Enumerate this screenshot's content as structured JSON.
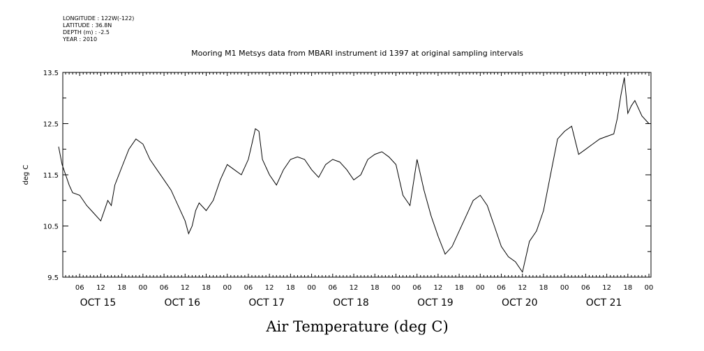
{
  "metadata": {
    "longitude": "LONGITUDE : 122W(-122)",
    "latitude": "LATITUDE : 36.8N",
    "depth": "DEPTH (m) : -2.5",
    "year": "YEAR : 2010"
  },
  "chart_data": {
    "type": "line",
    "title": "Mooring M1 Metsys data from MBARI instrument id 1397 at original sampling intervals",
    "xlabel": "Air Temperature (deg C)",
    "ylabel": "deg C",
    "ylim": [
      9.5,
      13.5
    ],
    "yticks": [
      "9.5",
      "10.5",
      "11.5",
      "12.5",
      "13.5"
    ],
    "xlim_hours": [
      0,
      168
    ],
    "hour_ticks": [
      "06",
      "12",
      "18",
      "00",
      "06",
      "12",
      "18",
      "00",
      "06",
      "12",
      "18",
      "00",
      "06",
      "12",
      "18",
      "00",
      "06",
      "12",
      "18",
      "00",
      "06",
      "12",
      "18",
      "00",
      "06",
      "12",
      "18",
      "00"
    ],
    "day_labels": [
      "OCT 15",
      "OCT 16",
      "OCT 17",
      "OCT 18",
      "OCT 19",
      "OCT 20",
      "OCT 21"
    ],
    "series": [
      {
        "x_hours": [
          0,
          1,
          2,
          3,
          4,
          6,
          8,
          10,
          12,
          13,
          14,
          15,
          16,
          18,
          20,
          22,
          24,
          26,
          28,
          30,
          32,
          34,
          36,
          37,
          38,
          39,
          40,
          42,
          44,
          46,
          48,
          50,
          52,
          54,
          55,
          56,
          57,
          58,
          60,
          62,
          64,
          66,
          68,
          70,
          72,
          74,
          76,
          78,
          80,
          82,
          84,
          86,
          88,
          90,
          92,
          94,
          96,
          98,
          100,
          102,
          104,
          106,
          108,
          110,
          112,
          114,
          116,
          118,
          120,
          122,
          123,
          124,
          126,
          128,
          130,
          132,
          134,
          136,
          138,
          140,
          142,
          144,
          146,
          148,
          150,
          152,
          154,
          156,
          158,
          159,
          160,
          161,
          162,
          163,
          164,
          166,
          168
        ],
        "y": [
          12.05,
          11.7,
          11.5,
          11.3,
          11.15,
          11.1,
          10.9,
          10.75,
          10.6,
          10.8,
          11.0,
          10.9,
          11.3,
          11.65,
          12.0,
          12.2,
          12.1,
          11.8,
          11.6,
          11.4,
          11.2,
          10.9,
          10.6,
          10.35,
          10.5,
          10.8,
          10.95,
          10.8,
          11.0,
          11.4,
          11.7,
          11.6,
          11.5,
          11.8,
          12.1,
          12.4,
          12.35,
          11.8,
          11.5,
          11.3,
          11.6,
          11.8,
          11.85,
          11.8,
          11.6,
          11.45,
          11.7,
          11.8,
          11.75,
          11.6,
          11.4,
          11.5,
          11.8,
          11.9,
          11.95,
          11.85,
          11.7,
          11.1,
          10.9,
          11.8,
          11.2,
          10.7,
          10.3,
          9.95,
          10.1,
          10.4,
          10.7,
          11.0,
          11.1,
          10.9,
          10.7,
          10.5,
          10.1,
          9.9,
          9.8,
          9.6,
          10.2,
          10.4,
          10.8,
          11.5,
          12.2,
          12.35,
          12.45,
          11.9,
          12.0,
          12.1,
          12.2,
          12.25,
          12.3,
          12.6,
          13.05,
          13.4,
          12.7,
          12.85,
          12.95,
          12.65,
          12.5
        ]
      }
    ]
  }
}
